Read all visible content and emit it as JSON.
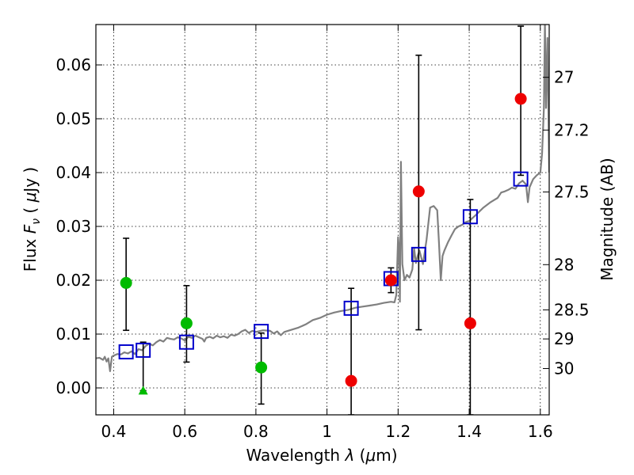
{
  "chart_data": {
    "type": "scatter",
    "xlabel": "Wavelength  λ (μm)",
    "xlabel_parts": {
      "pre": "Wavelength  ",
      "sym": "λ",
      "post": " (",
      "mu": "μ",
      "unit": "m)"
    },
    "ylabel_parts": {
      "pre": "Flux  ",
      "sym": "F",
      "sub": "ν",
      "mid": "  (  ",
      "mu": "μ",
      "unit": "Jy  )"
    },
    "ylabel_right": "Magnitude (AB)",
    "xlim": [
      0.35,
      1.625
    ],
    "ylim": [
      -0.005,
      0.0675
    ],
    "grid": true,
    "x_ticks": [
      {
        "value": 0.4,
        "label": "0.4"
      },
      {
        "value": 0.6,
        "label": "0.6"
      },
      {
        "value": 0.8,
        "label": "0.8"
      },
      {
        "value": 1.0,
        "label": "1"
      },
      {
        "value": 1.2,
        "label": "1.2"
      },
      {
        "value": 1.4,
        "label": "1.4"
      },
      {
        "value": 1.6,
        "label": "1.6"
      }
    ],
    "y_ticks": [
      {
        "value": 0.0,
        "label": "0.00"
      },
      {
        "value": 0.01,
        "label": "0.01"
      },
      {
        "value": 0.02,
        "label": "0.02"
      },
      {
        "value": 0.03,
        "label": "0.03"
      },
      {
        "value": 0.04,
        "label": "0.04"
      },
      {
        "value": 0.05,
        "label": "0.05"
      },
      {
        "value": 0.06,
        "label": "0.06"
      }
    ],
    "mag_ticks": [
      {
        "flux": 0.0577,
        "label": "27"
      },
      {
        "flux": 0.0479,
        "label": "27.2"
      },
      {
        "flux": 0.0364,
        "label": "27.5"
      },
      {
        "flux": 0.0229,
        "label": "28"
      },
      {
        "flux": 0.0145,
        "label": "28.5"
      },
      {
        "flux": 0.0091,
        "label": "29"
      },
      {
        "flux": 0.0036,
        "label": "30"
      }
    ],
    "colors": {
      "sed": "#808080",
      "green": "#00bb00",
      "red": "#ee0000",
      "model": "#0000cc",
      "errorbar": "#000000"
    },
    "sed_spectrum": [
      [
        0.35,
        0.0055
      ],
      [
        0.36,
        0.0056
      ],
      [
        0.37,
        0.0052
      ],
      [
        0.375,
        0.0058
      ],
      [
        0.38,
        0.0049
      ],
      [
        0.385,
        0.0055
      ],
      [
        0.39,
        0.0031
      ],
      [
        0.395,
        0.0058
      ],
      [
        0.4,
        0.006
      ],
      [
        0.41,
        0.0063
      ],
      [
        0.42,
        0.0062
      ],
      [
        0.43,
        0.0066
      ],
      [
        0.44,
        0.0064
      ],
      [
        0.45,
        0.0068
      ],
      [
        0.46,
        0.0063
      ],
      [
        0.47,
        0.0072
      ],
      [
        0.48,
        0.007
      ],
      [
        0.49,
        0.0078
      ],
      [
        0.5,
        0.0082
      ],
      [
        0.51,
        0.0079
      ],
      [
        0.52,
        0.0085
      ],
      [
        0.53,
        0.0089
      ],
      [
        0.54,
        0.0086
      ],
      [
        0.55,
        0.0093
      ],
      [
        0.56,
        0.0091
      ],
      [
        0.57,
        0.009
      ],
      [
        0.58,
        0.0094
      ],
      [
        0.59,
        0.0092
      ],
      [
        0.6,
        0.0088
      ],
      [
        0.61,
        0.0095
      ],
      [
        0.62,
        0.0093
      ],
      [
        0.63,
        0.0097
      ],
      [
        0.64,
        0.0094
      ],
      [
        0.65,
        0.0091
      ],
      [
        0.655,
        0.0086
      ],
      [
        0.66,
        0.0093
      ],
      [
        0.67,
        0.0095
      ],
      [
        0.68,
        0.0092
      ],
      [
        0.69,
        0.0097
      ],
      [
        0.7,
        0.0094
      ],
      [
        0.71,
        0.0096
      ],
      [
        0.72,
        0.0093
      ],
      [
        0.73,
        0.0099
      ],
      [
        0.74,
        0.0097
      ],
      [
        0.75,
        0.01
      ],
      [
        0.76,
        0.0105
      ],
      [
        0.77,
        0.0108
      ],
      [
        0.78,
        0.0102
      ],
      [
        0.79,
        0.0106
      ],
      [
        0.8,
        0.0104
      ],
      [
        0.82,
        0.0107
      ],
      [
        0.84,
        0.0106
      ],
      [
        0.85,
        0.0101
      ],
      [
        0.86,
        0.0105
      ],
      [
        0.87,
        0.0098
      ],
      [
        0.88,
        0.0104
      ],
      [
        0.9,
        0.0108
      ],
      [
        0.92,
        0.0112
      ],
      [
        0.94,
        0.0118
      ],
      [
        0.96,
        0.0126
      ],
      [
        0.98,
        0.013
      ],
      [
        1.0,
        0.0136
      ],
      [
        1.02,
        0.014
      ],
      [
        1.04,
        0.0143
      ],
      [
        1.06,
        0.0145
      ],
      [
        1.08,
        0.0149
      ],
      [
        1.1,
        0.0151
      ],
      [
        1.12,
        0.0153
      ],
      [
        1.14,
        0.0155
      ],
      [
        1.16,
        0.0158
      ],
      [
        1.18,
        0.016
      ],
      [
        1.19,
        0.0159
      ],
      [
        1.195,
        0.0173
      ],
      [
        1.2,
        0.028
      ],
      [
        1.202,
        0.0265
      ],
      [
        1.205,
        0.016
      ],
      [
        1.208,
        0.042
      ],
      [
        1.212,
        0.023
      ],
      [
        1.218,
        0.02
      ],
      [
        1.225,
        0.021
      ],
      [
        1.232,
        0.0205
      ],
      [
        1.24,
        0.022
      ],
      [
        1.245,
        0.026
      ],
      [
        1.25,
        0.0232
      ],
      [
        1.255,
        0.0245
      ],
      [
        1.26,
        0.0255
      ],
      [
        1.27,
        0.023
      ],
      [
        1.28,
        0.0275
      ],
      [
        1.29,
        0.0335
      ],
      [
        1.3,
        0.0338
      ],
      [
        1.31,
        0.033
      ],
      [
        1.315,
        0.027
      ],
      [
        1.32,
        0.02
      ],
      [
        1.325,
        0.0245
      ],
      [
        1.33,
        0.0255
      ],
      [
        1.34,
        0.027
      ],
      [
        1.35,
        0.0283
      ],
      [
        1.36,
        0.0295
      ],
      [
        1.37,
        0.03
      ],
      [
        1.38,
        0.0303
      ],
      [
        1.39,
        0.0308
      ],
      [
        1.4,
        0.031
      ],
      [
        1.42,
        0.0322
      ],
      [
        1.44,
        0.0335
      ],
      [
        1.46,
        0.0345
      ],
      [
        1.48,
        0.0353
      ],
      [
        1.49,
        0.0363
      ],
      [
        1.5,
        0.0365
      ],
      [
        1.51,
        0.0368
      ],
      [
        1.52,
        0.0372
      ],
      [
        1.53,
        0.037
      ],
      [
        1.54,
        0.038
      ],
      [
        1.55,
        0.0385
      ],
      [
        1.56,
        0.0378
      ],
      [
        1.565,
        0.0345
      ],
      [
        1.57,
        0.0373
      ],
      [
        1.58,
        0.0388
      ],
      [
        1.59,
        0.0395
      ],
      [
        1.6,
        0.04
      ],
      [
        1.605,
        0.0435
      ],
      [
        1.61,
        0.052
      ],
      [
        1.613,
        0.068
      ],
      [
        1.616,
        0.052
      ],
      [
        1.62,
        0.065
      ],
      [
        1.625,
        0.04
      ]
    ],
    "green_points": [
      {
        "x": 0.435,
        "y": 0.0195,
        "err_lo": 0.0107,
        "err_hi": 0.0278
      },
      {
        "x": 0.605,
        "y": 0.012,
        "err_lo": 0.0048,
        "err_hi": 0.019
      },
      {
        "x": 0.815,
        "y": 0.0038,
        "err_lo": -0.003,
        "err_hi": 0.0102
      }
    ],
    "green_upper_limit": {
      "x": 0.483,
      "y": -0.0005,
      "err_hi": 0.0085
    },
    "red_points": [
      {
        "x": 1.068,
        "y": 0.0013,
        "err_lo": -0.005,
        "err_hi": 0.0185
      },
      {
        "x": 1.18,
        "y": 0.02,
        "err_lo": 0.0177,
        "err_hi": 0.0223
      },
      {
        "x": 1.258,
        "y": 0.0365,
        "err_lo": 0.0108,
        "err_hi": 0.0618
      },
      {
        "x": 1.403,
        "y": 0.012,
        "err_lo": -0.005,
        "err_hi": 0.035
      },
      {
        "x": 1.545,
        "y": 0.0537,
        "err_lo": 0.0395,
        "err_hi": 0.0672
      }
    ],
    "model_points": [
      {
        "x": 0.435,
        "y": 0.0067
      },
      {
        "x": 0.483,
        "y": 0.007
      },
      {
        "x": 0.605,
        "y": 0.0085
      },
      {
        "x": 0.815,
        "y": 0.0105
      },
      {
        "x": 1.068,
        "y": 0.0148
      },
      {
        "x": 1.18,
        "y": 0.0203
      },
      {
        "x": 1.258,
        "y": 0.0248
      },
      {
        "x": 1.403,
        "y": 0.0318
      },
      {
        "x": 1.545,
        "y": 0.0388
      }
    ]
  }
}
